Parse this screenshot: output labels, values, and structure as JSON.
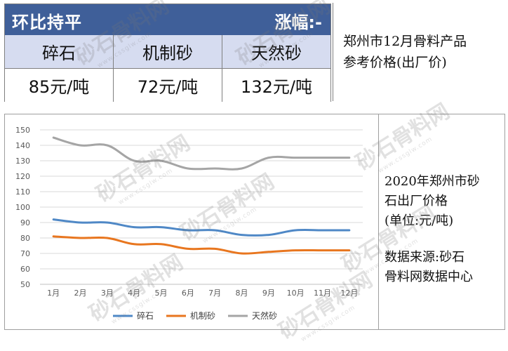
{
  "price_panel": {
    "header_left": "环比持平",
    "header_right": "涨幅:-",
    "products": [
      {
        "name": "碎石",
        "price": "85元/吨"
      },
      {
        "name": "机制砂",
        "price": "72元/吨"
      },
      {
        "name": "天然砂",
        "price": "132元/吨"
      }
    ],
    "caption": [
      "郑州市12月骨料产品",
      "参考价格(出厂价)"
    ]
  },
  "side_caption": {
    "lines": [
      "2020年郑州市砂",
      "石出厂价格"
    ],
    "unit": "(单位:元/吨)",
    "source": [
      "数据来源:砂石",
      "骨料网数据中心"
    ]
  },
  "watermark": {
    "text": "砂石骨料网",
    "url": "www.cssglw.com"
  },
  "chart_data": {
    "type": "line",
    "categories": [
      "1月",
      "2月",
      "3月",
      "4月",
      "5月",
      "6月",
      "7月",
      "8月",
      "9月",
      "10月",
      "11月",
      "12月"
    ],
    "ylim": [
      50,
      150
    ],
    "yticks": [
      50,
      60,
      70,
      80,
      90,
      100,
      110,
      120,
      130,
      140,
      150
    ],
    "grid": "horizontal",
    "legend_position": "bottom",
    "series": [
      {
        "name": "碎石",
        "color": "#4f88c6",
        "values": [
          92,
          90,
          90,
          87,
          87,
          85,
          85,
          82,
          82,
          85,
          85,
          85
        ]
      },
      {
        "name": "机制砂",
        "color": "#e8761f",
        "values": [
          81,
          80,
          80,
          76,
          76,
          73,
          73,
          70,
          71,
          72,
          72,
          72
        ]
      },
      {
        "name": "天然砂",
        "color": "#a5a5a5",
        "values": [
          145,
          140,
          140,
          130,
          130,
          125,
          125,
          125,
          132,
          132,
          132,
          132
        ]
      }
    ]
  }
}
